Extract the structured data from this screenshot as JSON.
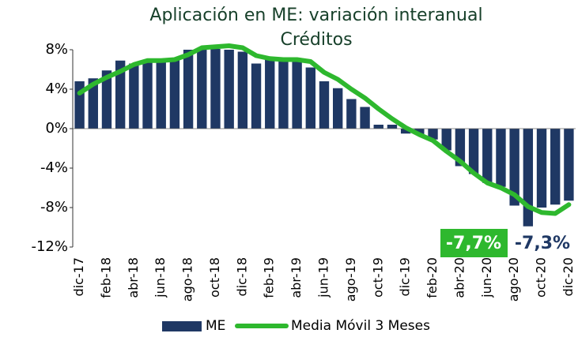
{
  "chart_data": {
    "type": "bar_line",
    "title": "Aplicación en ME: variación interanual",
    "subtitle": "Créditos",
    "categories": [
      "dic-17",
      null,
      "feb-18",
      null,
      "abr-18",
      null,
      "jun-18",
      null,
      "ago-18",
      null,
      "oct-18",
      null,
      "dic-18",
      null,
      "feb-19",
      null,
      "abr-19",
      null,
      "jun-19",
      null,
      "ago-19",
      null,
      "oct-19",
      null,
      "dic-19",
      null,
      "feb-20",
      null,
      "abr-20",
      null,
      "jun-20",
      null,
      "ago-20",
      null,
      "oct-20",
      null,
      "dic-20"
    ],
    "series": [
      {
        "name": "ME",
        "color": "#1f3864",
        "kind": "bar",
        "values": [
          4.8,
          5.1,
          5.9,
          6.9,
          6.6,
          6.8,
          6.9,
          7.2,
          8.0,
          8.2,
          8.1,
          8.0,
          7.8,
          6.6,
          7.0,
          7.1,
          6.8,
          6.2,
          4.8,
          4.1,
          3.0,
          2.2,
          0.4,
          0.4,
          -0.5,
          -0.6,
          -1.1,
          -2.2,
          -3.8,
          -4.6,
          -5.5,
          -5.9,
          -7.8,
          -9.9,
          -8.0,
          -7.7,
          -7.3
        ],
        "value_labels": [
          null,
          null,
          null,
          null,
          null,
          null,
          null,
          null,
          null,
          null,
          null,
          null,
          null,
          null,
          null,
          null,
          null,
          null,
          null,
          null,
          null,
          null,
          null,
          null,
          null,
          null,
          null,
          null,
          null,
          null,
          null,
          null,
          null,
          null,
          null,
          null,
          "-7,3%"
        ]
      },
      {
        "name": "Media Móvil 3 Meses",
        "color": "#2eb82e",
        "kind": "line",
        "values": [
          3.6,
          4.5,
          5.2,
          5.8,
          6.5,
          6.9,
          6.9,
          7.0,
          7.5,
          8.2,
          8.3,
          8.4,
          8.2,
          7.4,
          7.1,
          7.0,
          7.0,
          6.8,
          5.7,
          5.0,
          4.0,
          3.1,
          2.0,
          1.0,
          0.1,
          -0.6,
          -1.2,
          -2.3,
          -3.3,
          -4.5,
          -5.5,
          -6.0,
          -6.7,
          -7.9,
          -8.5,
          -8.6,
          -7.7
        ],
        "value_labels": [
          null,
          null,
          null,
          null,
          null,
          null,
          null,
          null,
          null,
          null,
          null,
          null,
          null,
          null,
          null,
          null,
          null,
          null,
          null,
          null,
          null,
          null,
          null,
          null,
          null,
          null,
          null,
          null,
          null,
          null,
          null,
          null,
          null,
          null,
          null,
          null,
          "-7,7%"
        ]
      }
    ],
    "ylim": [
      -12,
      8
    ],
    "yticks": [
      {
        "value": -12,
        "label": "-12%"
      },
      {
        "value": -8,
        "label": "-8%"
      },
      {
        "value": -4,
        "label": "-4%"
      },
      {
        "value": 0,
        "label": "0%"
      },
      {
        "value": 4,
        "label": "4%"
      },
      {
        "value": 8,
        "label": "8%"
      }
    ],
    "legend": "bottom"
  }
}
